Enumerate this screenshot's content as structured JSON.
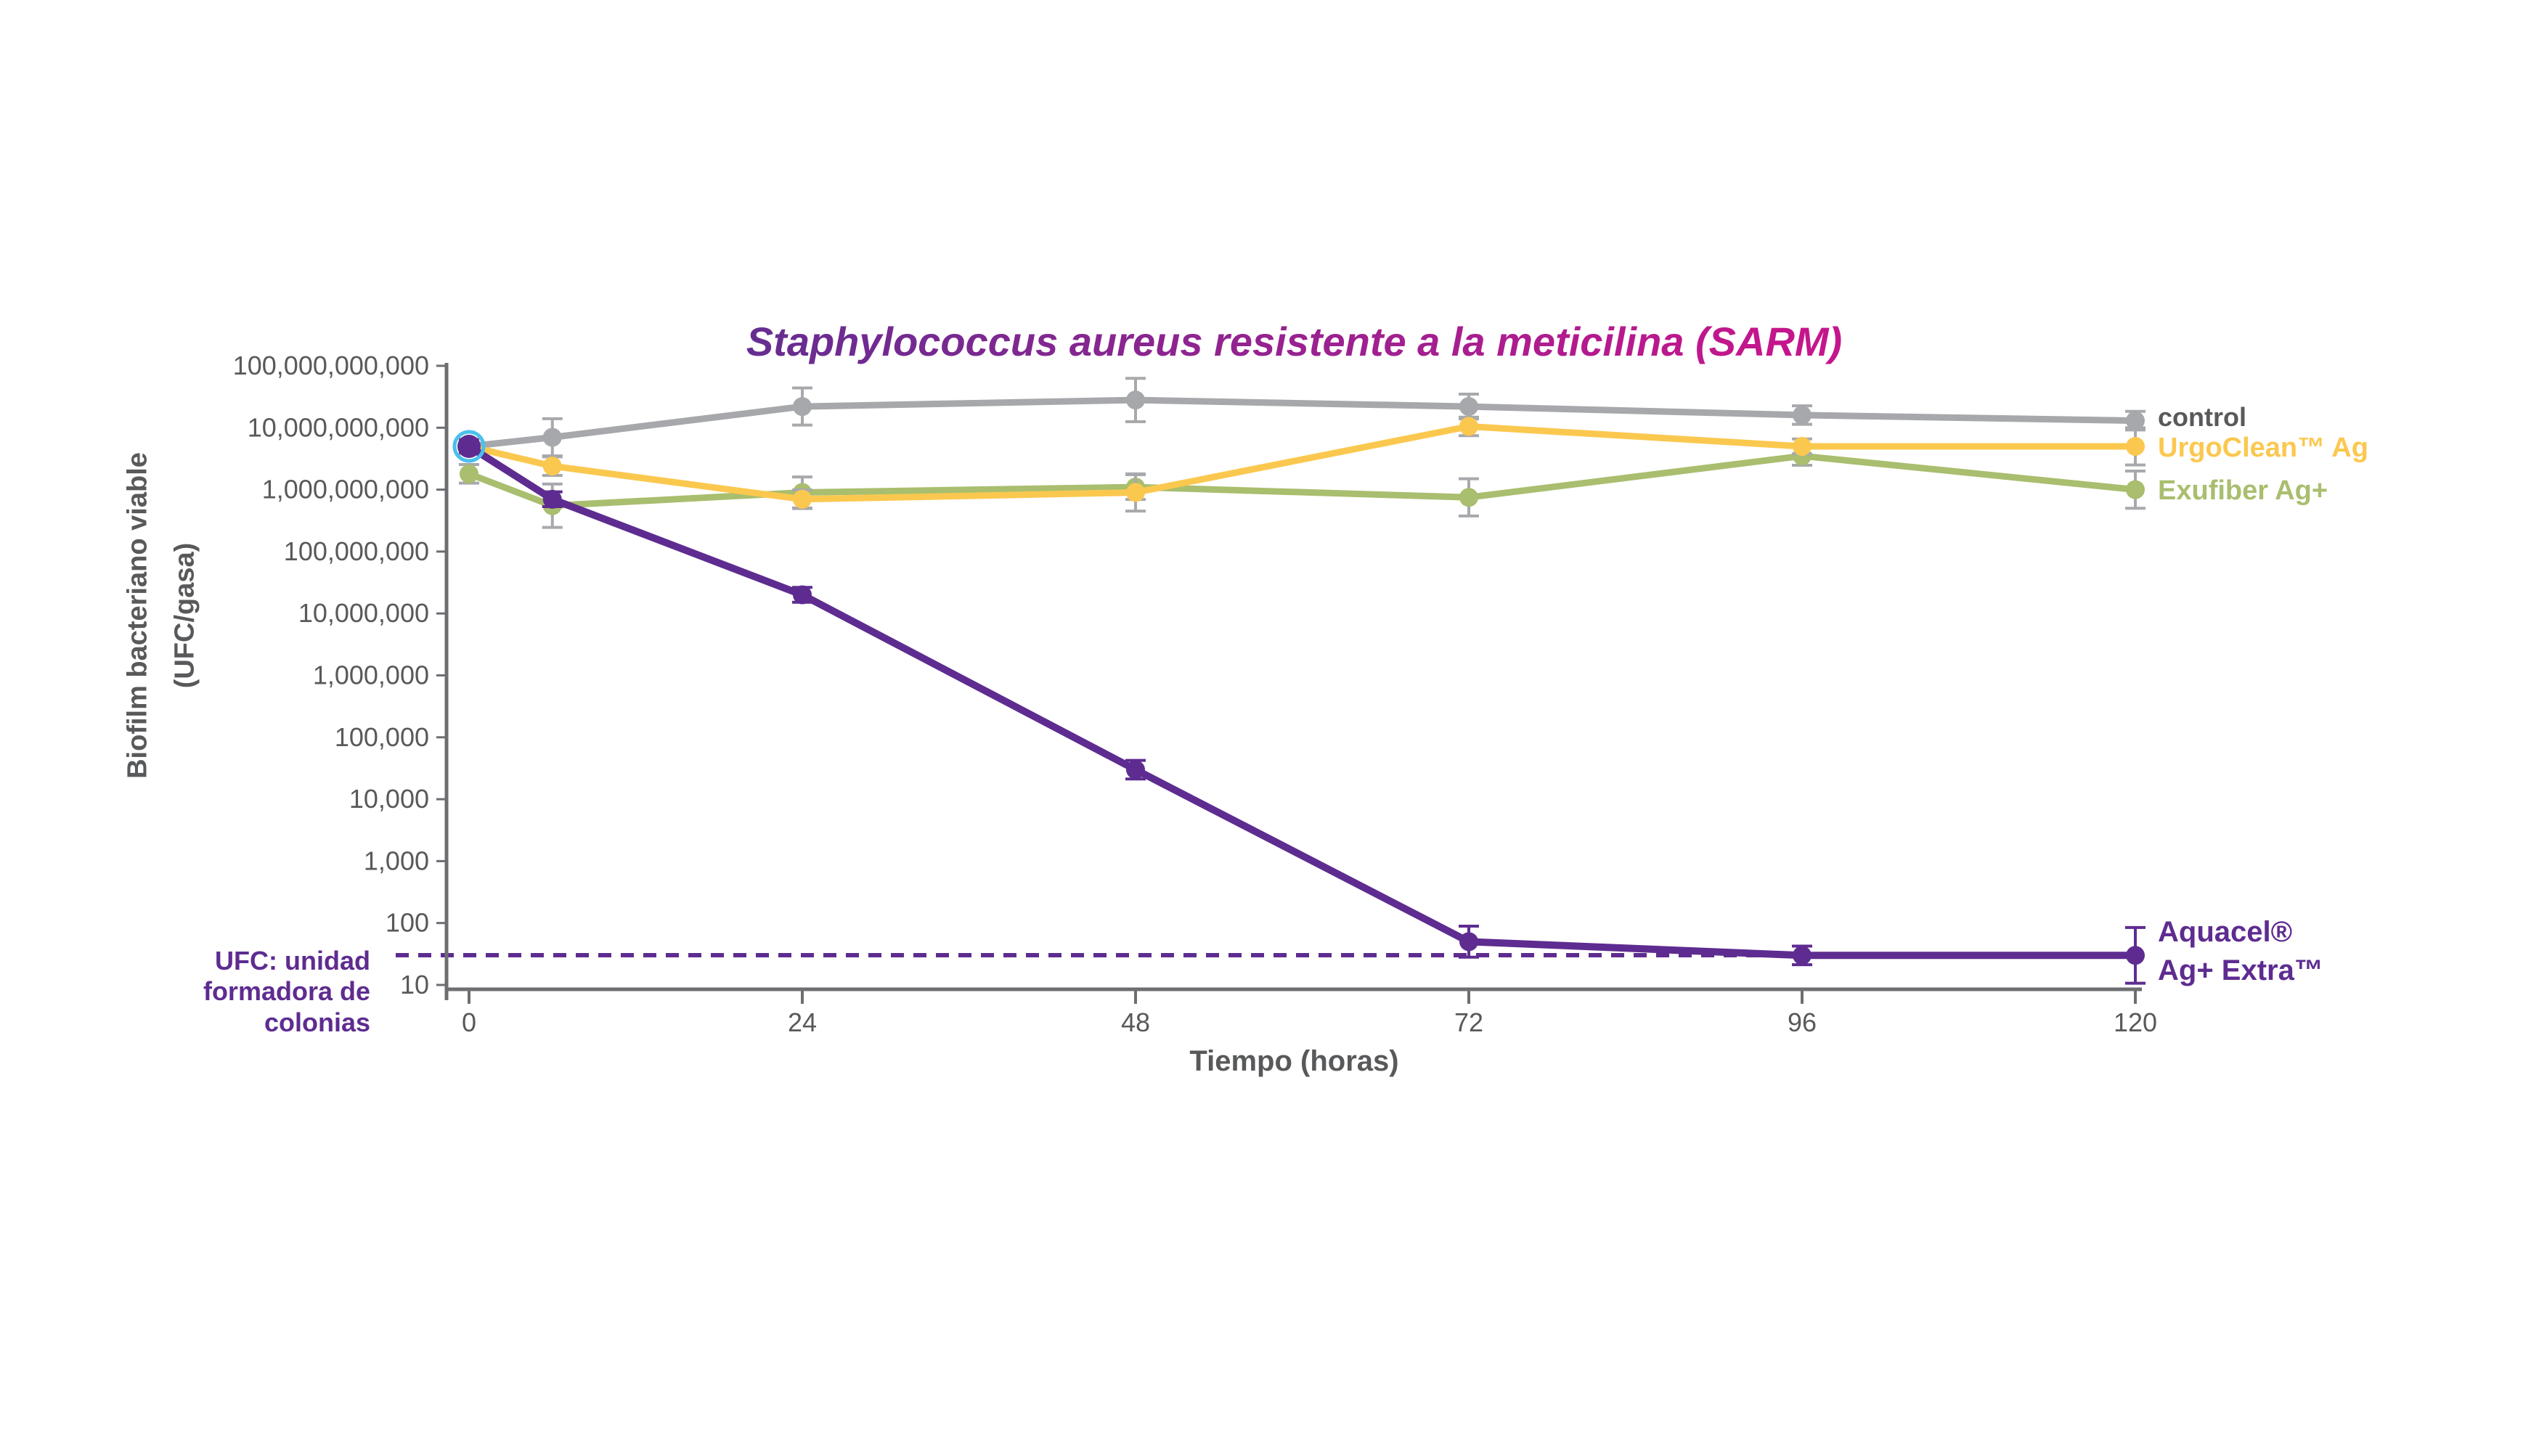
{
  "title": {
    "text": "Staphylococcus aureus resistente a la meticilina (SARM)"
  },
  "colors": {
    "title_gradient_from": "#662d91",
    "title_gradient_to": "#c4168c",
    "axis": "#6d6e71",
    "axis_text": "#58595b",
    "errorbar": "#a7a9ac",
    "start_ring": "#49c1ec"
  },
  "y_axis": {
    "title_line1": "Biofilm bacteriano viable",
    "title_line2": "(UFC/gasa)",
    "tick_labels": [
      "100,000,000,000",
      "10,000,000,000",
      "1,000,000,000",
      "100,000,000",
      "10,000,000",
      "1,000,000",
      "100,000",
      "10,000",
      "1,000",
      "100",
      "10"
    ],
    "tick_exponents": [
      11,
      10,
      9,
      8,
      7,
      6,
      5,
      4,
      3,
      2,
      1
    ]
  },
  "x_axis": {
    "title": "Tiempo (horas)",
    "tick_labels": [
      "0",
      "24",
      "48",
      "72",
      "96",
      "120"
    ],
    "tick_values": [
      0,
      24,
      48,
      72,
      96,
      120
    ]
  },
  "detection_limit": {
    "exponent": 1.48,
    "note_lines": [
      "UFC: unidad",
      "formadora de",
      "colonias"
    ]
  },
  "chart_data": {
    "type": "line",
    "x_hours": [
      0,
      6,
      24,
      48,
      72,
      96,
      120
    ],
    "xlabel": "Tiempo (horas)",
    "ylabel": "Biofilm bacteriano viable (UFC/gasa)",
    "y_scale": "log10",
    "ylim": [
      10,
      100000000000
    ],
    "grid": false,
    "legend_position": "right-of-line-ends",
    "series": [
      {
        "id": "control",
        "name": "control",
        "color": "#a6a8ab",
        "label_color": "#58595b",
        "label_lines": [
          "control"
        ],
        "label_x": 2972,
        "label_y": 574,
        "label_size": 36,
        "label_weight": "600",
        "values": [
          5000000000.0,
          7000000000.0,
          22000000000.0,
          28000000000.0,
          22000000000.0,
          16000000000.0,
          13000000000.0
        ],
        "err_log": [
          0.12,
          0.3,
          0.3,
          0.35,
          0.2,
          0.15,
          0.15
        ],
        "err_color": "#a7a9ac"
      },
      {
        "id": "exufiber",
        "name": "Exufiber Ag+",
        "color": "#a9be6e",
        "label_color": "#a9be6e",
        "label_lines": [
          "Exufiber Ag+"
        ],
        "label_x": 2972,
        "label_y": 675,
        "label_size": 38,
        "label_weight": "bold",
        "values": [
          1800000000.0,
          550000000.0,
          900000000.0,
          1100000000.0,
          750000000.0,
          3500000000.0,
          1000000000.0
        ],
        "err_log": [
          0.15,
          0.35,
          0.25,
          0.2,
          0.3,
          0.15,
          0.3
        ],
        "err_color": "#a7a9ac"
      },
      {
        "id": "urgoclean",
        "name": "UrgoClean™ Ag",
        "color": "#fbc84f",
        "label_color": "#fbc84f",
        "label_lines": [
          "UrgoClean™ Ag"
        ],
        "label_x": 2972,
        "label_y": 616,
        "label_size": 38,
        "label_weight": "bold",
        "values": [
          5000000000.0,
          2400000000.0,
          700000000.0,
          900000000.0,
          10500000000.0,
          5000000000.0,
          5000000000.0
        ],
        "err_log": [
          0.1,
          0.15,
          0.15,
          0.3,
          0.15,
          0.12,
          0.3
        ],
        "err_color": "#a7a9ac"
      },
      {
        "id": "aquacel",
        "name": "Aquacel® Ag+ Extra™",
        "color": "#5e2c90",
        "label_color": "#5e2c90",
        "label_lines": [
          "Aquacel®",
          "Ag+ Extra™"
        ],
        "label_x": 2972,
        "label_y": 1284,
        "label_size": 40,
        "label_weight": "bold",
        "values": [
          5000000000.0,
          700000000.0,
          20000000.0,
          30000.0,
          50,
          30,
          30
        ],
        "err_log": [
          0.1,
          0.12,
          0.12,
          0.15,
          0.25,
          0.15,
          0.45
        ],
        "err_color": "#5e2c90",
        "start_ring": true
      }
    ]
  }
}
